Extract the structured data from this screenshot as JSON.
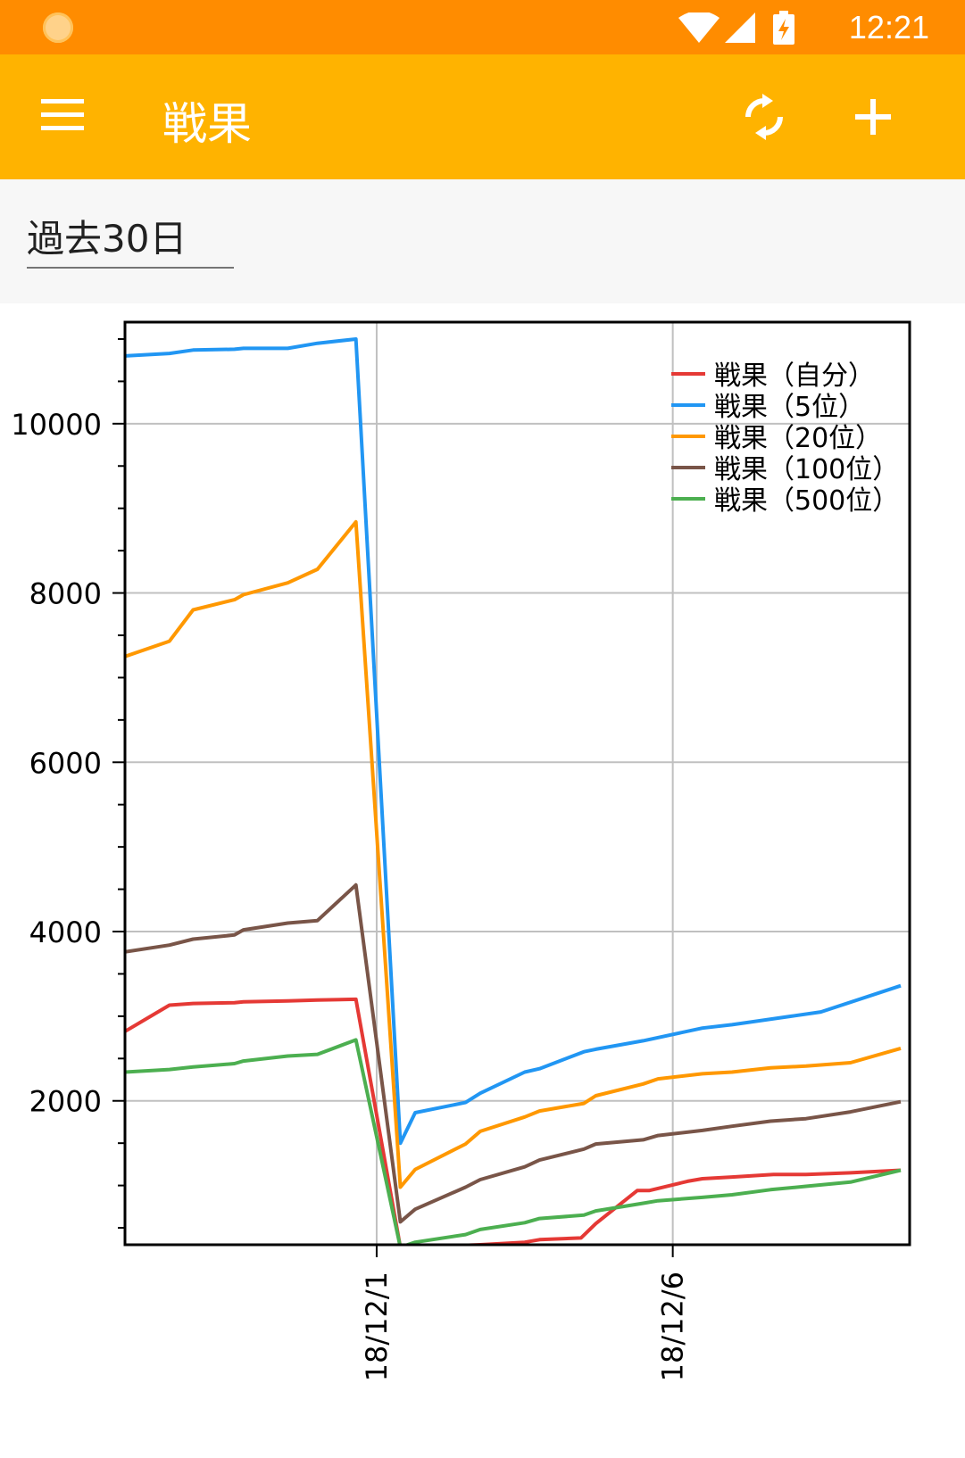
{
  "app": {
    "status_time": "12:21",
    "title": "戦果",
    "icons": [
      "sun-icon",
      "wifi-icon",
      "signal-icon",
      "battery-charging-icon",
      "menu-icon",
      "sync-icon",
      "plus-icon"
    ],
    "filter_label": "過去30日"
  },
  "colors": {
    "status_bar": "#ff8c00",
    "app_bar": "#ffb300"
  },
  "chart_data": {
    "type": "line",
    "xlim": [
      -8.5,
      18.0
    ],
    "ylim": [
      300,
      11200
    ],
    "x_ticks": [
      {
        "x": 0,
        "label": "18/12/1"
      },
      {
        "x": 10,
        "label": "18/12/6"
      }
    ],
    "y_ticks": [
      2000,
      4000,
      6000,
      8000,
      10000
    ],
    "y_minor_step": 500,
    "grid": true,
    "legend_position": "top-right",
    "series": [
      {
        "name": "戦果（自分）",
        "color": "#e53935",
        "x": [
          -8.5,
          -7.0,
          -6.2,
          -4.8,
          -4.5,
          -3.0,
          -2.0,
          -0.7,
          0.8,
          2.0,
          3.5,
          5.0,
          5.5,
          6.9,
          7.4,
          8.8,
          9.2,
          10.5,
          11.0,
          12.0,
          13.4,
          14.5,
          16.0,
          17.7
        ],
        "y": [
          2820,
          3130,
          3150,
          3160,
          3170,
          3180,
          3190,
          3200,
          270,
          280,
          300,
          330,
          360,
          380,
          550,
          940,
          940,
          1050,
          1080,
          1100,
          1130,
          1130,
          1150,
          1180
        ]
      },
      {
        "name": "戦果（5位）",
        "color": "#2196f3",
        "x": [
          -8.5,
          -7.0,
          -6.2,
          -4.8,
          -4.5,
          -3.0,
          -2.0,
          -0.7,
          0.8,
          1.3,
          3.0,
          3.5,
          5.0,
          5.5,
          7.0,
          7.4,
          9.0,
          11.0,
          12.0,
          14.0,
          15.0,
          17.7
        ],
        "y": [
          10800,
          10830,
          10870,
          10880,
          10890,
          10890,
          10950,
          11000,
          1500,
          1860,
          1980,
          2090,
          2340,
          2380,
          2580,
          2610,
          2710,
          2860,
          2900,
          3000,
          3050,
          3360
        ]
      },
      {
        "name": "戦果（20位）",
        "color": "#ff9800",
        "x": [
          -8.5,
          -7.0,
          -6.2,
          -4.8,
          -4.5,
          -3.0,
          -2.0,
          -0.7,
          0.8,
          1.3,
          3.0,
          3.5,
          5.0,
          5.5,
          7.0,
          7.4,
          9.0,
          9.5,
          11.0,
          12.0,
          13.3,
          14.5,
          16.0,
          17.7
        ],
        "y": [
          7250,
          7430,
          7800,
          7920,
          7980,
          8120,
          8280,
          8840,
          980,
          1190,
          1490,
          1640,
          1810,
          1880,
          1970,
          2060,
          2200,
          2260,
          2320,
          2340,
          2390,
          2410,
          2450,
          2620
        ]
      },
      {
        "name": "戦果（100位）",
        "color": "#795548",
        "x": [
          -8.5,
          -7.0,
          -6.2,
          -4.8,
          -4.5,
          -3.0,
          -2.0,
          -0.7,
          0.8,
          1.3,
          3.0,
          3.5,
          5.0,
          5.5,
          7.0,
          7.4,
          9.0,
          9.5,
          11.0,
          12.0,
          13.3,
          14.5,
          16.0,
          17.7
        ],
        "y": [
          3760,
          3840,
          3910,
          3960,
          4020,
          4100,
          4130,
          4550,
          570,
          720,
          980,
          1070,
          1220,
          1300,
          1430,
          1490,
          1540,
          1590,
          1650,
          1700,
          1760,
          1790,
          1870,
          1990
        ]
      },
      {
        "name": "戦果（500位）",
        "color": "#4caf50",
        "x": [
          -8.5,
          -7.0,
          -6.2,
          -4.8,
          -4.5,
          -3.0,
          -2.0,
          -0.7,
          0.8,
          1.3,
          3.0,
          3.5,
          5.0,
          5.5,
          7.0,
          7.4,
          9.0,
          9.5,
          11.0,
          12.0,
          13.3,
          14.5,
          16.0,
          17.7
        ],
        "y": [
          2340,
          2370,
          2400,
          2440,
          2470,
          2530,
          2550,
          2720,
          270,
          330,
          420,
          480,
          560,
          610,
          650,
          700,
          790,
          820,
          860,
          890,
          950,
          990,
          1040,
          1180
        ]
      }
    ]
  }
}
